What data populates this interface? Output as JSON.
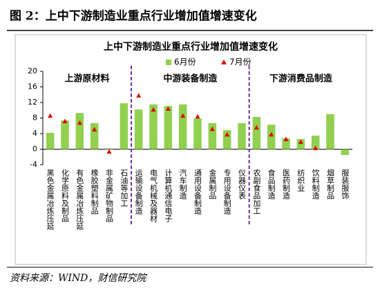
{
  "header": "图 2：上中下游制造业重点行业增加值增速变化",
  "source": "资料来源：WIND，财信研究院",
  "chart_data": {
    "type": "bar",
    "title": "上中下游制造业重点行业增加值增速变化",
    "categories": [
      "黑色金属冶炼压延",
      "化学原料及制品",
      "有色金属冶炼压延",
      "橡胶塑料制品",
      "非金属矿物制品",
      "石油等加工",
      "运输设备制造",
      "电气机械及器材",
      "计算机通信电子",
      "汽车制造",
      "通用设备制造",
      "金属制品",
      "专用设备制造",
      "仪器仪表",
      "农副食品加工",
      "食品制造",
      "医药制造",
      "纺织业",
      "饮料制造",
      "烟草制品",
      "服装服饰"
    ],
    "series": [
      {
        "name": "6月份",
        "color": "#92d050",
        "marker": "bar",
        "values": [
          4.2,
          7.4,
          9.3,
          6.7,
          0.2,
          11.8,
          10.2,
          11.5,
          11.1,
          11.5,
          7.9,
          6.7,
          4.9,
          6.7,
          8.3,
          6.3,
          2.8,
          2.6,
          3.5,
          9.0,
          -1.5
        ]
      },
      {
        "name": "7月份",
        "color": "#e00000",
        "marker": "triangle",
        "values": [
          8.6,
          7.2,
          6.8,
          5.1,
          -0.6,
          null,
          13.8,
          10.2,
          10.4,
          8.6,
          8.4,
          5.2,
          3.8,
          null,
          5.6,
          3.8,
          2.6,
          1.9,
          0.3,
          null,
          null
        ]
      }
    ],
    "annotations": [
      "上游原材料",
      "中游装备制造",
      "下游消费品制造"
    ],
    "ylim": [
      -4,
      20
    ],
    "yticks": [
      -4,
      0,
      4,
      8,
      12,
      16,
      20
    ],
    "legend": "top",
    "grid": false
  }
}
